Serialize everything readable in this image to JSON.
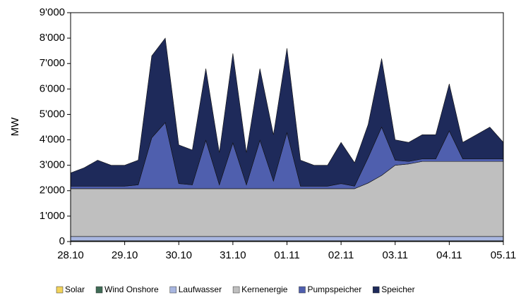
{
  "chart_data": {
    "type": "stacked_area",
    "ylabel": "MW",
    "categories": [
      "28.10",
      null,
      null,
      null,
      "29.10",
      null,
      null,
      null,
      "30.10",
      null,
      null,
      null,
      "31.10",
      null,
      null,
      null,
      "01.11",
      null,
      null,
      null,
      "02.11",
      null,
      null,
      null,
      "03.11",
      null,
      null,
      null,
      "04.11",
      null,
      null,
      null,
      "05.11"
    ],
    "series": [
      {
        "name": "Solar",
        "color": "#f2d35b",
        "values": [
          10,
          10,
          10,
          10,
          10,
          10,
          10,
          10,
          10,
          10,
          10,
          10,
          10,
          10,
          10,
          10,
          10,
          10,
          10,
          10,
          10,
          10,
          10,
          10,
          10,
          10,
          10,
          10,
          10,
          10,
          10,
          10,
          10
        ]
      },
      {
        "name": "Wind Onshore",
        "color": "#3f6b55",
        "values": [
          20,
          20,
          20,
          20,
          20,
          20,
          20,
          20,
          20,
          20,
          20,
          20,
          20,
          20,
          20,
          20,
          20,
          20,
          20,
          20,
          20,
          20,
          20,
          20,
          20,
          20,
          20,
          20,
          20,
          20,
          20,
          20,
          20
        ]
      },
      {
        "name": "Laufwasser",
        "color": "#a8b6e0",
        "values": [
          170,
          170,
          170,
          170,
          170,
          170,
          170,
          170,
          170,
          170,
          170,
          170,
          170,
          170,
          170,
          170,
          170,
          170,
          170,
          170,
          170,
          170,
          170,
          170,
          170,
          170,
          170,
          170,
          170,
          170,
          170,
          170,
          170
        ]
      },
      {
        "name": "Kernenergie",
        "color": "#bfbfbf",
        "values": [
          1880,
          1880,
          1880,
          1880,
          1880,
          1880,
          1880,
          1880,
          1880,
          1880,
          1880,
          1880,
          1880,
          1880,
          1880,
          1880,
          1880,
          1880,
          1880,
          1880,
          1880,
          1880,
          2100,
          2400,
          2800,
          2850,
          2950,
          2950,
          2950,
          2950,
          2950,
          2950,
          2950
        ]
      },
      {
        "name": "Pumpspeicher",
        "color": "#4f5fae",
        "values": [
          100,
          100,
          100,
          100,
          100,
          150,
          2000,
          2600,
          200,
          150,
          1900,
          150,
          1800,
          150,
          1900,
          300,
          2200,
          100,
          100,
          100,
          200,
          100,
          1000,
          1900,
          200,
          100,
          100,
          100,
          1200,
          100,
          100,
          100,
          100
        ]
      },
      {
        "name": "Speicher",
        "color": "#1e2a5a",
        "values": [
          520,
          720,
          1020,
          820,
          820,
          970,
          3220,
          3320,
          1520,
          1370,
          2820,
          1270,
          3520,
          1270,
          2820,
          1820,
          3320,
          1020,
          820,
          820,
          1620,
          920,
          1300,
          2700,
          800,
          750,
          950,
          950,
          1850,
          650,
          950,
          1250,
          650
        ]
      }
    ],
    "ylim": [
      0,
      9000
    ],
    "yticks": [
      0,
      {
        "value": 1000,
        "label": "1'000"
      },
      {
        "value": 2000,
        "label": "2'000"
      },
      {
        "value": 3000,
        "label": "3'000"
      },
      {
        "value": 4000,
        "label": "4'000"
      },
      {
        "value": 5000,
        "label": "5'000"
      },
      {
        "value": 6000,
        "label": "6'000"
      },
      {
        "value": 7000,
        "label": "7'000"
      },
      {
        "value": 8000,
        "label": "8'000"
      },
      {
        "value": 9000,
        "label": "9'000"
      }
    ],
    "legend": "bottom"
  }
}
